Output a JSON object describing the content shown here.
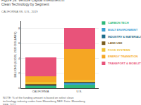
{
  "chart_data": {
    "type": "bar",
    "title": "Figure 59. Venture Capital Investment in Clean Technology by Segment",
    "subtitle": "CALIFORNIA VS. U.S., 2019",
    "categories": [
      "CALIFORNIA",
      "U.S."
    ],
    "series": [
      {
        "name": "CARBON TECH",
        "color": "#2db87a",
        "values": [
          0.3,
          0.55
        ]
      },
      {
        "name": "BUILT ENVIRONMENT",
        "color": "#3aa0d4",
        "values": [
          0.06,
          0.18
        ]
      },
      {
        "name": "INDUSTRY & MATERIALS",
        "color": "#1a6b8a",
        "values": [
          0.06,
          0.1
        ]
      },
      {
        "name": "LAND USE",
        "color": "#7a5c1e",
        "values": [
          0.12,
          0.05
        ]
      },
      {
        "name": "FOOD SYSTEMS",
        "color": "#f0c030",
        "values": [
          0.3,
          0.2
        ]
      },
      {
        "name": "ENERGY TRANSITION",
        "color": "#f5a623",
        "values": [
          0.8,
          4.2
        ]
      },
      {
        "name": "TRANSPORT & MOBILITY",
        "color": "#e8537a",
        "values": [
          2.5,
          2.8
        ]
      }
    ],
    "ylabel": "BILLIONS ($ 2020, 2020 DOLLARS)",
    "ylim": [
      0,
      9
    ],
    "yticks": [
      0,
      2,
      4,
      6,
      8
    ],
    "grid": true,
    "stacked": true,
    "legend": "right",
    "footnote": "NOTE: % of the funding amount is based on select clean technology industry codes from Bloomberg NEF. Data: Bloomberg NEF, 2021."
  }
}
